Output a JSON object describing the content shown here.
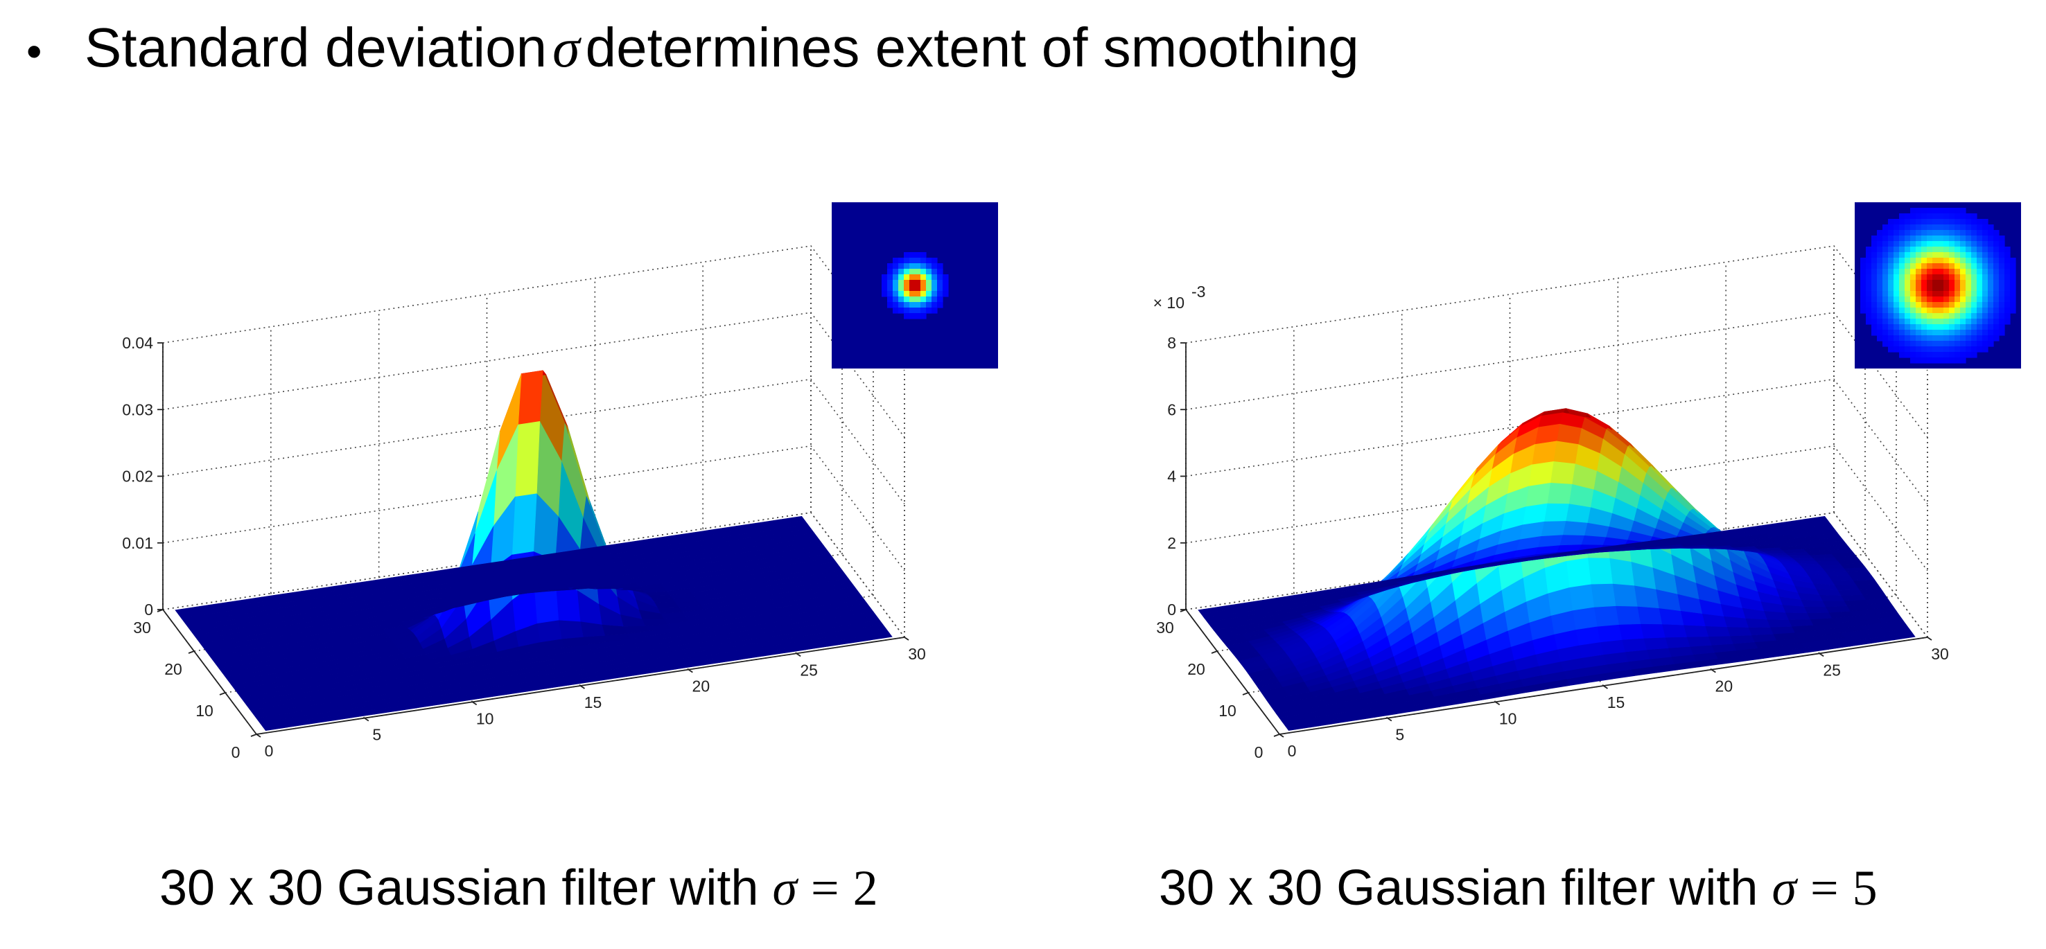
{
  "headline": {
    "bullet": "•",
    "text_before": "Standard deviation",
    "symbol": "σ",
    "text_after": "determines extent of smoothing"
  },
  "panels": [
    {
      "caption_prefix": "30 x 30 Gaussian filter with",
      "caption_symbol": "σ",
      "caption_eq": "=",
      "caption_value": "2"
    },
    {
      "caption_prefix": "30 x 30 Gaussian filter with",
      "caption_symbol": "σ",
      "caption_eq": "=",
      "caption_value": "5"
    }
  ],
  "chart_data": [
    {
      "type": "surface",
      "title": "",
      "xlabel": "",
      "ylabel": "",
      "zlabel": "",
      "grid_size": 30,
      "sigma": 2,
      "x_ticks": [
        "0",
        "5",
        "10",
        "15",
        "20",
        "25",
        "30"
      ],
      "y_ticks": [
        "0",
        "10",
        "20",
        "30"
      ],
      "z_ticks": [
        "0",
        "0.01",
        "0.02",
        "0.03",
        "0.04"
      ],
      "z_multiplier_label": "",
      "xlim": [
        0,
        30
      ],
      "ylim": [
        0,
        30
      ],
      "zlim": [
        0,
        0.04
      ],
      "peak_value": 0.0398,
      "colormap": "jet",
      "grid": true,
      "inset": "top-down heatmap of the same kernel, top-right"
    },
    {
      "type": "surface",
      "title": "",
      "xlabel": "",
      "ylabel": "",
      "zlabel": "",
      "grid_size": 30,
      "sigma": 5,
      "x_ticks": [
        "0",
        "5",
        "10",
        "15",
        "20",
        "25",
        "30"
      ],
      "y_ticks": [
        "0",
        "10",
        "20",
        "30"
      ],
      "z_ticks": [
        "0",
        "2",
        "4",
        "6",
        "8"
      ],
      "z_multiplier_label": "× 10",
      "z_multiplier_exp": "-3",
      "xlim": [
        0,
        30
      ],
      "ylim": [
        0,
        30
      ],
      "zlim": [
        0,
        8
      ],
      "peak_value": 6.4,
      "colormap": "jet",
      "grid": true,
      "inset": "top-down heatmap of the same kernel, top-right"
    }
  ]
}
